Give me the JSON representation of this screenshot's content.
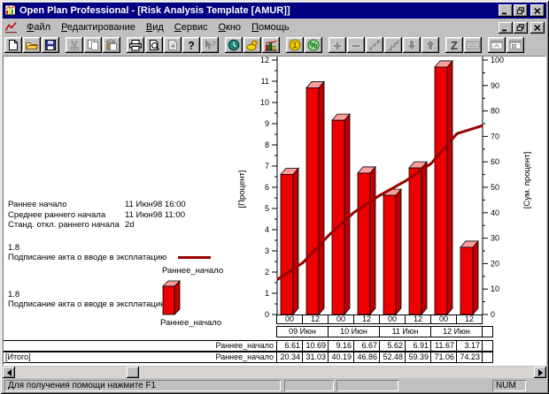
{
  "titlebar": {
    "title": "Open Plan Professional - [Risk Analysis Template [AMUR]]"
  },
  "window_controls": [
    "minimize",
    "restore",
    "close"
  ],
  "menu": {
    "items": [
      "Файл",
      "Редактирование",
      "Вид",
      "Сервис",
      "Окно",
      "Помощь"
    ]
  },
  "toolbar": {
    "buttons": [
      {
        "name": "new-document",
        "icon": "doc",
        "enabled": true
      },
      {
        "name": "open-project",
        "icon": "folder",
        "enabled": true
      },
      {
        "name": "save",
        "icon": "disk",
        "enabled": true
      },
      {
        "name": "cut",
        "icon": "cut",
        "enabled": false
      },
      {
        "name": "copy",
        "icon": "copy",
        "enabled": false
      },
      {
        "name": "paste",
        "icon": "paste",
        "enabled": false
      },
      {
        "name": "print",
        "icon": "printer",
        "enabled": true
      },
      {
        "name": "print-preview",
        "icon": "preview",
        "enabled": true
      },
      {
        "name": "page-setup",
        "icon": "docplus",
        "enabled": false
      },
      {
        "name": "help",
        "icon": "help",
        "enabled": true
      },
      {
        "name": "context-help",
        "icon": "contexthelp",
        "enabled": false
      },
      {
        "name": "time-analysis",
        "icon": "clock",
        "enabled": true
      },
      {
        "name": "resource-analysis",
        "icon": "duck",
        "enabled": true
      },
      {
        "name": "risk-analysis",
        "icon": "histogram",
        "enabled": true
      },
      {
        "name": "cost-analysis",
        "icon": "coin",
        "enabled": true
      },
      {
        "name": "percent-complete",
        "icon": "percent",
        "enabled": true
      },
      {
        "name": "add-activity",
        "icon": "plus",
        "enabled": false
      },
      {
        "name": "delete-activity",
        "icon": "minus",
        "enabled": false
      },
      {
        "name": "link-activities",
        "icon": "dots",
        "enabled": false
      },
      {
        "name": "step-view",
        "icon": "steps",
        "enabled": false
      },
      {
        "name": "move-down",
        "icon": "down",
        "enabled": false
      },
      {
        "name": "move-up",
        "icon": "up",
        "enabled": false
      },
      {
        "name": "sort",
        "icon": "z",
        "enabled": true
      },
      {
        "name": "spreadsheet",
        "icon": "keyboard",
        "enabled": false
      },
      {
        "name": "window-view-1",
        "icon": "win1",
        "enabled": false
      },
      {
        "name": "window-view-2",
        "icon": "win2",
        "enabled": false
      }
    ]
  },
  "stats": {
    "rows": [
      {
        "label": "Раннее начало",
        "value": "11 Июн98 16:00"
      },
      {
        "label": "Среднее раннего начала",
        "value": "11 Июн98 11:00"
      },
      {
        "label": "Станд. откл.  раннего начала",
        "value": "2d"
      }
    ]
  },
  "legend_line": {
    "value": "1.8",
    "desc": "Подписание акта о вводе в эксплатацию",
    "series": "Раннее_начало"
  },
  "legend_bar": {
    "value": "1.8",
    "desc": "Подписание акта о вводе в эксплатацию",
    "series": "Раннее_начало"
  },
  "chart_data": {
    "type": "bar",
    "x_hours": [
      "00",
      "12",
      "00",
      "12",
      "00",
      "12",
      "00",
      "12"
    ],
    "x_days": [
      "09 Июн",
      "10 Июн",
      "11 Июн",
      "12 Июн"
    ],
    "ylabel_left": "[Процент]",
    "ylabel_right": "[Сум. процент]",
    "ylim_left": [
      0,
      12
    ],
    "ylim_right": [
      0,
      100
    ],
    "tick_step_left": 1,
    "tick_step_right": 10,
    "bar_series": {
      "name": "Раннее_начало",
      "values": [
        6.61,
        10.69,
        9.16,
        6.67,
        5.62,
        6.91,
        11.67,
        3.17
      ],
      "color": "#ee0000",
      "top_color": "#ff9c9c",
      "side_color": "#c00000"
    },
    "line_series": {
      "name": "Раннее_начало",
      "values": [
        20.34,
        31.03,
        40.19,
        46.86,
        52.48,
        59.39,
        71.06,
        74.23
      ],
      "color": "#990000"
    }
  },
  "table": {
    "rows": [
      {
        "row_label": "",
        "series_label": "Раннее_начало",
        "values": [
          "6.61",
          "10.69",
          "9.16",
          "6.67",
          "5.62",
          "6.91",
          "11.67",
          "3.17"
        ]
      },
      {
        "row_label": "[Итого]",
        "series_label": "Раннее_начало",
        "values": [
          "20.34",
          "31.03",
          "40.19",
          "46.86",
          "52.48",
          "59.39",
          "71.06",
          "74.23"
        ]
      }
    ]
  },
  "statusbar": {
    "message": "Для получения помощи нажмите F1",
    "num": "NUM"
  }
}
